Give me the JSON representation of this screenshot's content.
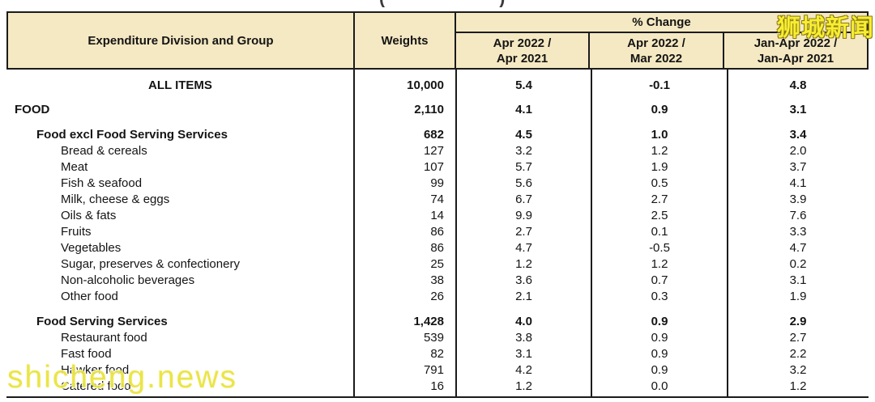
{
  "top_fragments": {
    "left_mark": "(",
    "right_mark": ")"
  },
  "watermarks": {
    "top_right_text": "狮城新闻",
    "bottom_left_text": "shicheng.news",
    "color": "#f2e73b"
  },
  "colors": {
    "header_background": "#f5e9c3",
    "border": "#1b1b1b",
    "page_background": "#ffffff"
  },
  "table": {
    "header": {
      "col_expenditure": "Expenditure Division and Group",
      "col_weights": "Weights",
      "pct_change": "% Change",
      "subcols": [
        {
          "line1": "Apr 2022 /",
          "line2": "Apr 2021"
        },
        {
          "line1": "Apr 2022 /",
          "line2": "Mar 2022"
        },
        {
          "line1": "Jan-Apr 2022 /",
          "line2": "Jan-Apr 2021"
        }
      ]
    },
    "rows": [
      {
        "label": "ALL ITEMS",
        "weight": "10,000",
        "apr22_apr21": "5.4",
        "apr22_mar22": "-0.1",
        "janapr22_janapr21": "4.8",
        "type": "all-items",
        "gap": 10
      },
      {
        "label": "FOOD",
        "weight": "2,110",
        "apr22_apr21": "4.1",
        "apr22_mar22": "0.9",
        "janapr22_janapr21": "3.1",
        "type": "division",
        "gap": 10
      },
      {
        "label": "Food excl Food Serving Services",
        "weight": "682",
        "apr22_apr21": "4.5",
        "apr22_mar22": "1.0",
        "janapr22_janapr21": "3.4",
        "type": "group",
        "gap": 11
      },
      {
        "label": "Bread & cereals",
        "weight": "127",
        "apr22_apr21": "3.2",
        "apr22_mar22": "1.2",
        "janapr22_janapr21": "2.0",
        "type": "item",
        "gap": 0
      },
      {
        "label": "Meat",
        "weight": "107",
        "apr22_apr21": "5.7",
        "apr22_mar22": "1.9",
        "janapr22_janapr21": "3.7",
        "type": "item",
        "gap": 0
      },
      {
        "label": "Fish & seafood",
        "weight": "99",
        "apr22_apr21": "5.6",
        "apr22_mar22": "0.5",
        "janapr22_janapr21": "4.1",
        "type": "item",
        "gap": 0
      },
      {
        "label": "Milk, cheese & eggs",
        "weight": "74",
        "apr22_apr21": "6.7",
        "apr22_mar22": "2.7",
        "janapr22_janapr21": "3.9",
        "type": "item",
        "gap": 0
      },
      {
        "label": "Oils & fats",
        "weight": "14",
        "apr22_apr21": "9.9",
        "apr22_mar22": "2.5",
        "janapr22_janapr21": "7.6",
        "type": "item",
        "gap": 0
      },
      {
        "label": "Fruits",
        "weight": "86",
        "apr22_apr21": "2.7",
        "apr22_mar22": "0.1",
        "janapr22_janapr21": "3.3",
        "type": "item",
        "gap": 0
      },
      {
        "label": "Vegetables",
        "weight": "86",
        "apr22_apr21": "4.7",
        "apr22_mar22": "-0.5",
        "janapr22_janapr21": "4.7",
        "type": "item",
        "gap": 0
      },
      {
        "label": "Sugar, preserves & confectionery",
        "weight": "25",
        "apr22_apr21": "1.2",
        "apr22_mar22": "1.2",
        "janapr22_janapr21": "0.2",
        "type": "item",
        "gap": 0
      },
      {
        "label": "Non-alcoholic beverages",
        "weight": "38",
        "apr22_apr21": "3.6",
        "apr22_mar22": "0.7",
        "janapr22_janapr21": "3.1",
        "type": "item",
        "gap": 0
      },
      {
        "label": "Other food",
        "weight": "26",
        "apr22_apr21": "2.1",
        "apr22_mar22": "0.3",
        "janapr22_janapr21": "1.9",
        "type": "item",
        "gap": 0
      },
      {
        "label": "Food Serving Services",
        "weight": "1,428",
        "apr22_apr21": "4.0",
        "apr22_mar22": "0.9",
        "janapr22_janapr21": "2.9",
        "type": "group",
        "gap": 11
      },
      {
        "label": "Restaurant food",
        "weight": "539",
        "apr22_apr21": "3.8",
        "apr22_mar22": "0.9",
        "janapr22_janapr21": "2.7",
        "type": "item",
        "gap": 0
      },
      {
        "label": "Fast food",
        "weight": "82",
        "apr22_apr21": "3.1",
        "apr22_mar22": "0.9",
        "janapr22_janapr21": "2.2",
        "type": "item",
        "gap": 0
      },
      {
        "label": "Hawker food",
        "weight": "791",
        "apr22_apr21": "4.2",
        "apr22_mar22": "0.9",
        "janapr22_janapr21": "3.2",
        "type": "item",
        "gap": 0
      },
      {
        "label": "Catered food",
        "weight": "16",
        "apr22_apr21": "1.2",
        "apr22_mar22": "0.0",
        "janapr22_janapr21": "1.2",
        "type": "item",
        "gap": 0
      }
    ]
  }
}
